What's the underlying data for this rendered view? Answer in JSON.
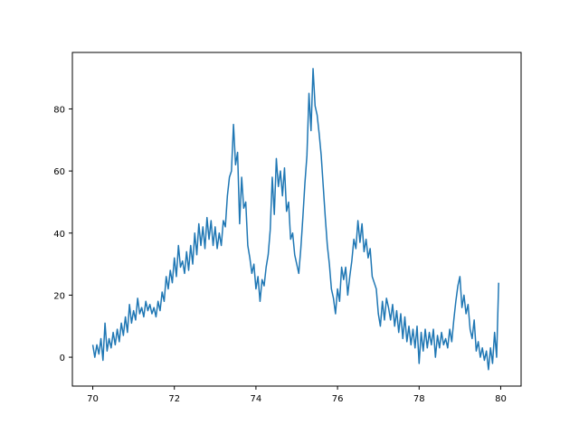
{
  "chart_data": {
    "type": "line",
    "title": "",
    "xlabel": "",
    "ylabel": "",
    "xlim": [
      69.5,
      80.5
    ],
    "ylim": [
      -9.3,
      98.2
    ],
    "grid": false,
    "legend": "none",
    "x_ticks": [
      {
        "value": 70,
        "label": "70"
      },
      {
        "value": 72,
        "label": "72"
      },
      {
        "value": 74,
        "label": "74"
      },
      {
        "value": 76,
        "label": "76"
      },
      {
        "value": 78,
        "label": "78"
      },
      {
        "value": 80,
        "label": "80"
      }
    ],
    "y_ticks": [
      {
        "value": 0,
        "label": "0"
      },
      {
        "value": 20,
        "label": "20"
      },
      {
        "value": 40,
        "label": "40"
      },
      {
        "value": 60,
        "label": "60"
      },
      {
        "value": 80,
        "label": "80"
      }
    ],
    "series": [
      {
        "color": "#1f77b4",
        "points": [
          [
            70.0,
            4
          ],
          [
            70.05,
            0
          ],
          [
            70.1,
            4
          ],
          [
            70.15,
            1
          ],
          [
            70.2,
            6
          ],
          [
            70.25,
            -1
          ],
          [
            70.3,
            11
          ],
          [
            70.35,
            2
          ],
          [
            70.4,
            6
          ],
          [
            70.45,
            3
          ],
          [
            70.5,
            8
          ],
          [
            70.55,
            4
          ],
          [
            70.6,
            9
          ],
          [
            70.65,
            5
          ],
          [
            70.7,
            11
          ],
          [
            70.75,
            7
          ],
          [
            70.8,
            13
          ],
          [
            70.85,
            8
          ],
          [
            70.9,
            17
          ],
          [
            70.95,
            11
          ],
          [
            71.0,
            15
          ],
          [
            71.05,
            12
          ],
          [
            71.1,
            19
          ],
          [
            71.15,
            14
          ],
          [
            71.2,
            16
          ],
          [
            71.25,
            13
          ],
          [
            71.3,
            18
          ],
          [
            71.35,
            15
          ],
          [
            71.4,
            17
          ],
          [
            71.45,
            14
          ],
          [
            71.5,
            16
          ],
          [
            71.55,
            13
          ],
          [
            71.6,
            18
          ],
          [
            71.65,
            15
          ],
          [
            71.7,
            21
          ],
          [
            71.75,
            18
          ],
          [
            71.8,
            26
          ],
          [
            71.85,
            22
          ],
          [
            71.9,
            28
          ],
          [
            71.95,
            24
          ],
          [
            72.0,
            32
          ],
          [
            72.05,
            26
          ],
          [
            72.1,
            36
          ],
          [
            72.15,
            29
          ],
          [
            72.2,
            31
          ],
          [
            72.25,
            27
          ],
          [
            72.3,
            34
          ],
          [
            72.35,
            28
          ],
          [
            72.4,
            36
          ],
          [
            72.45,
            30
          ],
          [
            72.5,
            40
          ],
          [
            72.55,
            33
          ],
          [
            72.6,
            43
          ],
          [
            72.65,
            36
          ],
          [
            72.7,
            42
          ],
          [
            72.75,
            35
          ],
          [
            72.8,
            45
          ],
          [
            72.85,
            38
          ],
          [
            72.9,
            44
          ],
          [
            72.95,
            36
          ],
          [
            73.0,
            42
          ],
          [
            73.05,
            35
          ],
          [
            73.1,
            40
          ],
          [
            73.15,
            36
          ],
          [
            73.2,
            44
          ],
          [
            73.25,
            42
          ],
          [
            73.3,
            52
          ],
          [
            73.35,
            58
          ],
          [
            73.4,
            60
          ],
          [
            73.45,
            75
          ],
          [
            73.5,
            62
          ],
          [
            73.55,
            66
          ],
          [
            73.6,
            43
          ],
          [
            73.65,
            58
          ],
          [
            73.7,
            48
          ],
          [
            73.75,
            50
          ],
          [
            73.8,
            36
          ],
          [
            73.85,
            32
          ],
          [
            73.9,
            27
          ],
          [
            73.95,
            30
          ],
          [
            74.0,
            22
          ],
          [
            74.05,
            26
          ],
          [
            74.1,
            18
          ],
          [
            74.15,
            25
          ],
          [
            74.2,
            23
          ],
          [
            74.25,
            29
          ],
          [
            74.3,
            33
          ],
          [
            74.35,
            41
          ],
          [
            74.4,
            58
          ],
          [
            74.45,
            46
          ],
          [
            74.5,
            64
          ],
          [
            74.55,
            55
          ],
          [
            74.6,
            60
          ],
          [
            74.65,
            52
          ],
          [
            74.7,
            61
          ],
          [
            74.75,
            47
          ],
          [
            74.8,
            50
          ],
          [
            74.85,
            38
          ],
          [
            74.9,
            40
          ],
          [
            74.95,
            33
          ],
          [
            75.0,
            30
          ],
          [
            75.05,
            27
          ],
          [
            75.1,
            35
          ],
          [
            75.15,
            45
          ],
          [
            75.2,
            56
          ],
          [
            75.25,
            65
          ],
          [
            75.3,
            85
          ],
          [
            75.35,
            73
          ],
          [
            75.4,
            93
          ],
          [
            75.45,
            81
          ],
          [
            75.5,
            78
          ],
          [
            75.55,
            72
          ],
          [
            75.6,
            65
          ],
          [
            75.65,
            55
          ],
          [
            75.7,
            45
          ],
          [
            75.75,
            36
          ],
          [
            75.8,
            30
          ],
          [
            75.85,
            22
          ],
          [
            75.9,
            19
          ],
          [
            75.95,
            14
          ],
          [
            76.0,
            22
          ],
          [
            76.05,
            18
          ],
          [
            76.1,
            29
          ],
          [
            76.15,
            25
          ],
          [
            76.2,
            29
          ],
          [
            76.25,
            20
          ],
          [
            76.3,
            26
          ],
          [
            76.35,
            31
          ],
          [
            76.4,
            38
          ],
          [
            76.45,
            35
          ],
          [
            76.5,
            44
          ],
          [
            76.55,
            37
          ],
          [
            76.6,
            43
          ],
          [
            76.65,
            34
          ],
          [
            76.7,
            38
          ],
          [
            76.75,
            32
          ],
          [
            76.8,
            35
          ],
          [
            76.85,
            26
          ],
          [
            76.9,
            24
          ],
          [
            76.95,
            22
          ],
          [
            77.0,
            14
          ],
          [
            77.05,
            10
          ],
          [
            77.1,
            18
          ],
          [
            77.15,
            12
          ],
          [
            77.2,
            19
          ],
          [
            77.25,
            16
          ],
          [
            77.3,
            12
          ],
          [
            77.35,
            17
          ],
          [
            77.4,
            10
          ],
          [
            77.45,
            15
          ],
          [
            77.5,
            8
          ],
          [
            77.55,
            14
          ],
          [
            77.6,
            6
          ],
          [
            77.65,
            13
          ],
          [
            77.7,
            5
          ],
          [
            77.75,
            10
          ],
          [
            77.8,
            4
          ],
          [
            77.85,
            9
          ],
          [
            77.9,
            3
          ],
          [
            77.95,
            10
          ],
          [
            78.0,
            -2
          ],
          [
            78.05,
            8
          ],
          [
            78.1,
            2
          ],
          [
            78.15,
            9
          ],
          [
            78.2,
            3
          ],
          [
            78.25,
            8
          ],
          [
            78.3,
            4
          ],
          [
            78.35,
            9
          ],
          [
            78.4,
            0
          ],
          [
            78.45,
            7
          ],
          [
            78.5,
            3
          ],
          [
            78.55,
            8
          ],
          [
            78.6,
            4
          ],
          [
            78.65,
            6
          ],
          [
            78.7,
            3
          ],
          [
            78.75,
            9
          ],
          [
            78.8,
            5
          ],
          [
            78.85,
            12
          ],
          [
            78.9,
            18
          ],
          [
            78.95,
            23
          ],
          [
            79.0,
            26
          ],
          [
            79.05,
            16
          ],
          [
            79.1,
            20
          ],
          [
            79.15,
            14
          ],
          [
            79.2,
            17
          ],
          [
            79.25,
            9
          ],
          [
            79.3,
            6
          ],
          [
            79.35,
            12
          ],
          [
            79.4,
            2
          ],
          [
            79.45,
            5
          ],
          [
            79.5,
            0
          ],
          [
            79.55,
            3
          ],
          [
            79.6,
            -1
          ],
          [
            79.65,
            2
          ],
          [
            79.7,
            -4
          ],
          [
            79.75,
            3
          ],
          [
            79.8,
            -2
          ],
          [
            79.85,
            8
          ],
          [
            79.9,
            0
          ],
          [
            79.95,
            24
          ]
        ]
      }
    ]
  }
}
